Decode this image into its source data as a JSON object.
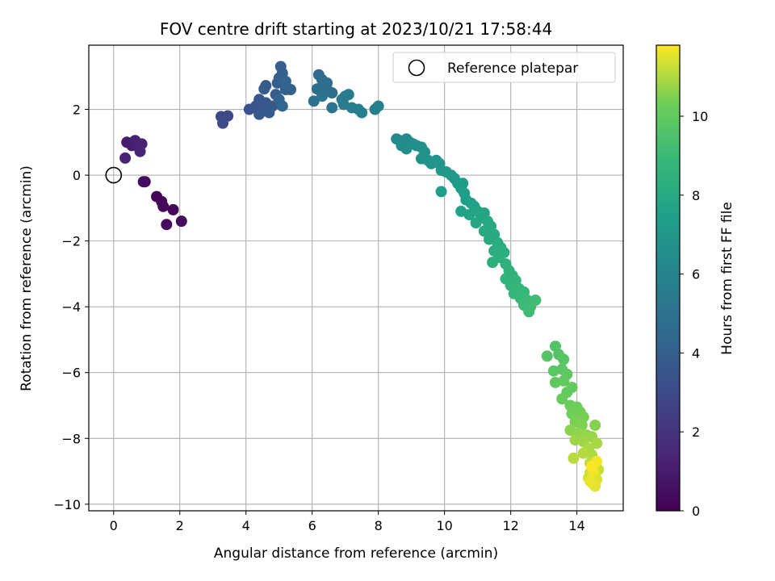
{
  "chart_data": {
    "type": "scatter",
    "title": "FOV centre drift starting at 2023/10/21 17:58:44",
    "xlabel": "Angular distance from reference (arcmin)",
    "ylabel": "Rotation from reference (arcmin)",
    "xlim": [
      -0.75,
      15.4
    ],
    "ylim": [
      -10.2,
      3.95
    ],
    "xticks": [
      0,
      2,
      4,
      6,
      8,
      10,
      12,
      14
    ],
    "yticks": [
      -10,
      -8,
      -6,
      -4,
      -2,
      0,
      2
    ],
    "grid": true,
    "legend": {
      "placement": "top-right",
      "entries": [
        "Reference platepar"
      ]
    },
    "reference_point": {
      "x": 0,
      "y": 0,
      "label": "Reference platepar"
    },
    "colorbar": {
      "label": "Hours from first FF file",
      "colormap": "viridis",
      "range": [
        0,
        11.8
      ],
      "ticks": [
        0,
        2,
        4,
        6,
        8,
        10
      ]
    },
    "points": [
      {
        "x": 0.95,
        "y": -0.2,
        "t": 0.1
      },
      {
        "x": 1.3,
        "y": -0.65,
        "t": 0.15
      },
      {
        "x": 1.45,
        "y": -0.8,
        "t": 0.2
      },
      {
        "x": 1.5,
        "y": -0.95,
        "t": 0.25
      },
      {
        "x": 1.8,
        "y": -1.05,
        "t": 0.3
      },
      {
        "x": 1.6,
        "y": -1.5,
        "t": 0.35
      },
      {
        "x": 2.05,
        "y": -1.4,
        "t": 0.4
      },
      {
        "x": 0.9,
        "y": -0.2,
        "t": 0.45
      },
      {
        "x": 0.4,
        "y": 1.0,
        "t": 1.1
      },
      {
        "x": 0.55,
        "y": 0.9,
        "t": 1.15
      },
      {
        "x": 0.65,
        "y": 1.05,
        "t": 1.2
      },
      {
        "x": 0.75,
        "y": 0.95,
        "t": 1.25
      },
      {
        "x": 0.85,
        "y": 0.95,
        "t": 1.3
      },
      {
        "x": 0.8,
        "y": 0.72,
        "t": 1.35
      },
      {
        "x": 0.35,
        "y": 0.52,
        "t": 1.4
      },
      {
        "x": 3.25,
        "y": 1.78,
        "t": 2.9
      },
      {
        "x": 3.45,
        "y": 1.8,
        "t": 2.95
      },
      {
        "x": 3.3,
        "y": 1.58,
        "t": 3.0
      },
      {
        "x": 4.1,
        "y": 2.0,
        "t": 3.4
      },
      {
        "x": 4.3,
        "y": 2.1,
        "t": 3.45
      },
      {
        "x": 4.4,
        "y": 2.3,
        "t": 3.5
      },
      {
        "x": 4.5,
        "y": 2.0,
        "t": 3.55
      },
      {
        "x": 4.4,
        "y": 1.85,
        "t": 3.6
      },
      {
        "x": 4.6,
        "y": 2.2,
        "t": 3.65
      },
      {
        "x": 4.8,
        "y": 2.1,
        "t": 3.7
      },
      {
        "x": 4.7,
        "y": 1.9,
        "t": 3.75
      },
      {
        "x": 4.55,
        "y": 2.62,
        "t": 3.8
      },
      {
        "x": 4.6,
        "y": 2.72,
        "t": 3.85
      },
      {
        "x": 4.9,
        "y": 2.45,
        "t": 3.9
      },
      {
        "x": 4.95,
        "y": 2.8,
        "t": 3.95
      },
      {
        "x": 5.0,
        "y": 2.95,
        "t": 4.0
      },
      {
        "x": 5.05,
        "y": 3.3,
        "t": 4.05
      },
      {
        "x": 5.1,
        "y": 3.1,
        "t": 4.1
      },
      {
        "x": 5.2,
        "y": 2.6,
        "t": 4.15
      },
      {
        "x": 5.35,
        "y": 2.6,
        "t": 4.2
      },
      {
        "x": 5.2,
        "y": 2.85,
        "t": 4.25
      },
      {
        "x": 5.0,
        "y": 2.3,
        "t": 4.3
      },
      {
        "x": 5.1,
        "y": 2.1,
        "t": 4.35
      },
      {
        "x": 6.2,
        "y": 3.05,
        "t": 4.6
      },
      {
        "x": 6.3,
        "y": 2.9,
        "t": 4.65
      },
      {
        "x": 6.35,
        "y": 2.7,
        "t": 4.7
      },
      {
        "x": 6.45,
        "y": 2.8,
        "t": 4.75
      },
      {
        "x": 6.5,
        "y": 2.55,
        "t": 4.8
      },
      {
        "x": 6.6,
        "y": 2.5,
        "t": 4.85
      },
      {
        "x": 6.15,
        "y": 2.62,
        "t": 4.9
      },
      {
        "x": 6.05,
        "y": 2.25,
        "t": 4.95
      },
      {
        "x": 6.3,
        "y": 2.4,
        "t": 5.0
      },
      {
        "x": 6.6,
        "y": 2.05,
        "t": 5.05
      },
      {
        "x": 6.9,
        "y": 2.3,
        "t": 5.4
      },
      {
        "x": 7.0,
        "y": 2.4,
        "t": 5.45
      },
      {
        "x": 7.1,
        "y": 2.45,
        "t": 5.5
      },
      {
        "x": 6.95,
        "y": 2.15,
        "t": 5.55
      },
      {
        "x": 7.2,
        "y": 2.05,
        "t": 5.6
      },
      {
        "x": 7.4,
        "y": 2.0,
        "t": 5.65
      },
      {
        "x": 7.5,
        "y": 1.9,
        "t": 5.7
      },
      {
        "x": 7.9,
        "y": 2.0,
        "t": 5.75
      },
      {
        "x": 8.0,
        "y": 2.1,
        "t": 5.8
      },
      {
        "x": 8.55,
        "y": 1.1,
        "t": 6.2
      },
      {
        "x": 8.65,
        "y": 1.05,
        "t": 6.25
      },
      {
        "x": 8.75,
        "y": 1.0,
        "t": 6.3
      },
      {
        "x": 8.85,
        "y": 1.1,
        "t": 6.35
      },
      {
        "x": 8.95,
        "y": 1.0,
        "t": 6.4
      },
      {
        "x": 8.7,
        "y": 0.9,
        "t": 6.45
      },
      {
        "x": 8.85,
        "y": 0.8,
        "t": 6.5
      },
      {
        "x": 9.05,
        "y": 0.95,
        "t": 6.55
      },
      {
        "x": 9.15,
        "y": 0.9,
        "t": 6.6
      },
      {
        "x": 9.3,
        "y": 0.85,
        "t": 6.65
      },
      {
        "x": 9.4,
        "y": 0.7,
        "t": 6.7
      },
      {
        "x": 9.3,
        "y": 0.5,
        "t": 6.75
      },
      {
        "x": 9.5,
        "y": 0.45,
        "t": 6.8
      },
      {
        "x": 9.6,
        "y": 0.35,
        "t": 6.85
      },
      {
        "x": 9.75,
        "y": 0.45,
        "t": 6.9
      },
      {
        "x": 9.85,
        "y": 0.35,
        "t": 6.95
      },
      {
        "x": 9.9,
        "y": 0.15,
        "t": 7.0
      },
      {
        "x": 10.05,
        "y": 0.1,
        "t": 7.05
      },
      {
        "x": 10.2,
        "y": 0.0,
        "t": 7.1
      },
      {
        "x": 10.3,
        "y": -0.1,
        "t": 7.15
      },
      {
        "x": 10.4,
        "y": -0.25,
        "t": 7.2
      },
      {
        "x": 10.5,
        "y": -0.4,
        "t": 7.25
      },
      {
        "x": 10.55,
        "y": -0.25,
        "t": 7.3
      },
      {
        "x": 9.9,
        "y": -0.5,
        "t": 7.35
      },
      {
        "x": 10.6,
        "y": -0.55,
        "t": 7.4
      },
      {
        "x": 10.65,
        "y": -0.75,
        "t": 7.45
      },
      {
        "x": 10.8,
        "y": -0.85,
        "t": 7.5
      },
      {
        "x": 10.9,
        "y": -0.95,
        "t": 7.55
      },
      {
        "x": 10.5,
        "y": -1.1,
        "t": 7.6
      },
      {
        "x": 10.75,
        "y": -1.2,
        "t": 7.65
      },
      {
        "x": 11.0,
        "y": -1.1,
        "t": 7.7
      },
      {
        "x": 11.1,
        "y": -1.3,
        "t": 7.75
      },
      {
        "x": 11.2,
        "y": -1.15,
        "t": 7.8
      },
      {
        "x": 10.95,
        "y": -1.45,
        "t": 7.85
      },
      {
        "x": 11.3,
        "y": -1.4,
        "t": 7.9
      },
      {
        "x": 11.4,
        "y": -1.55,
        "t": 7.95
      },
      {
        "x": 11.2,
        "y": -1.7,
        "t": 8.0
      },
      {
        "x": 11.5,
        "y": -1.8,
        "t": 8.05
      },
      {
        "x": 11.35,
        "y": -1.95,
        "t": 8.1
      },
      {
        "x": 11.6,
        "y": -2.05,
        "t": 8.15
      },
      {
        "x": 11.7,
        "y": -2.2,
        "t": 8.2
      },
      {
        "x": 11.5,
        "y": -2.3,
        "t": 8.25
      },
      {
        "x": 11.8,
        "y": -2.35,
        "t": 8.3
      },
      {
        "x": 11.65,
        "y": -2.5,
        "t": 8.35
      },
      {
        "x": 11.45,
        "y": -2.65,
        "t": 8.4
      },
      {
        "x": 11.85,
        "y": -2.7,
        "t": 8.45
      },
      {
        "x": 11.95,
        "y": -2.9,
        "t": 8.5
      },
      {
        "x": 12.05,
        "y": -3.05,
        "t": 8.55
      },
      {
        "x": 11.85,
        "y": -3.15,
        "t": 8.6
      },
      {
        "x": 12.15,
        "y": -3.2,
        "t": 8.65
      },
      {
        "x": 12.0,
        "y": -3.35,
        "t": 8.7
      },
      {
        "x": 12.25,
        "y": -3.45,
        "t": 8.75
      },
      {
        "x": 12.1,
        "y": -3.6,
        "t": 8.8
      },
      {
        "x": 12.4,
        "y": -3.55,
        "t": 8.85
      },
      {
        "x": 12.3,
        "y": -3.75,
        "t": 8.9
      },
      {
        "x": 12.5,
        "y": -3.8,
        "t": 8.95
      },
      {
        "x": 12.4,
        "y": -3.95,
        "t": 9.0
      },
      {
        "x": 12.6,
        "y": -4.0,
        "t": 9.05
      },
      {
        "x": 12.55,
        "y": -4.15,
        "t": 9.1
      },
      {
        "x": 12.75,
        "y": -3.8,
        "t": 9.15
      },
      {
        "x": 13.35,
        "y": -5.2,
        "t": 9.6
      },
      {
        "x": 13.1,
        "y": -5.5,
        "t": 9.65
      },
      {
        "x": 13.45,
        "y": -5.45,
        "t": 9.7
      },
      {
        "x": 13.6,
        "y": -5.6,
        "t": 9.75
      },
      {
        "x": 13.3,
        "y": -5.95,
        "t": 9.8
      },
      {
        "x": 13.55,
        "y": -5.9,
        "t": 9.85
      },
      {
        "x": 13.7,
        "y": -6.05,
        "t": 9.9
      },
      {
        "x": 13.35,
        "y": -6.3,
        "t": 9.95
      },
      {
        "x": 13.6,
        "y": -6.25,
        "t": 10.0
      },
      {
        "x": 13.85,
        "y": -6.45,
        "t": 10.05
      },
      {
        "x": 13.7,
        "y": -6.6,
        "t": 10.1
      },
      {
        "x": 13.55,
        "y": -6.8,
        "t": 10.15
      },
      {
        "x": 13.8,
        "y": -7.0,
        "t": 10.2
      },
      {
        "x": 14.0,
        "y": -7.05,
        "t": 10.25
      },
      {
        "x": 13.85,
        "y": -7.25,
        "t": 10.3
      },
      {
        "x": 14.1,
        "y": -7.2,
        "t": 10.35
      },
      {
        "x": 14.2,
        "y": -7.35,
        "t": 10.4
      },
      {
        "x": 13.95,
        "y": -7.5,
        "t": 10.45
      },
      {
        "x": 14.15,
        "y": -7.6,
        "t": 10.5
      },
      {
        "x": 14.55,
        "y": -7.6,
        "t": 10.55
      },
      {
        "x": 13.8,
        "y": -7.75,
        "t": 10.6
      },
      {
        "x": 14.05,
        "y": -7.85,
        "t": 10.65
      },
      {
        "x": 14.3,
        "y": -7.9,
        "t": 10.7
      },
      {
        "x": 14.45,
        "y": -7.95,
        "t": 10.75
      },
      {
        "x": 13.95,
        "y": -8.05,
        "t": 10.8
      },
      {
        "x": 14.2,
        "y": -8.1,
        "t": 10.85
      },
      {
        "x": 14.6,
        "y": -8.15,
        "t": 10.9
      },
      {
        "x": 14.35,
        "y": -8.3,
        "t": 10.95
      },
      {
        "x": 14.45,
        "y": -8.5,
        "t": 11.0
      },
      {
        "x": 14.2,
        "y": -8.45,
        "t": 11.05
      },
      {
        "x": 13.9,
        "y": -8.6,
        "t": 11.1
      },
      {
        "x": 14.4,
        "y": -8.75,
        "t": 11.15
      },
      {
        "x": 14.5,
        "y": -8.8,
        "t": 11.2
      },
      {
        "x": 14.65,
        "y": -8.95,
        "t": 11.25
      },
      {
        "x": 14.4,
        "y": -9.05,
        "t": 11.3
      },
      {
        "x": 14.55,
        "y": -9.1,
        "t": 11.35
      },
      {
        "x": 14.35,
        "y": -9.2,
        "t": 11.4
      },
      {
        "x": 14.6,
        "y": -9.25,
        "t": 11.45
      },
      {
        "x": 14.45,
        "y": -9.35,
        "t": 11.5
      },
      {
        "x": 14.55,
        "y": -9.45,
        "t": 11.55
      },
      {
        "x": 14.4,
        "y": -9.3,
        "t": 11.6
      },
      {
        "x": 14.5,
        "y": -9.0,
        "t": 11.65
      },
      {
        "x": 14.6,
        "y": -8.7,
        "t": 11.7
      },
      {
        "x": 14.45,
        "y": -8.85,
        "t": 11.75
      }
    ]
  }
}
